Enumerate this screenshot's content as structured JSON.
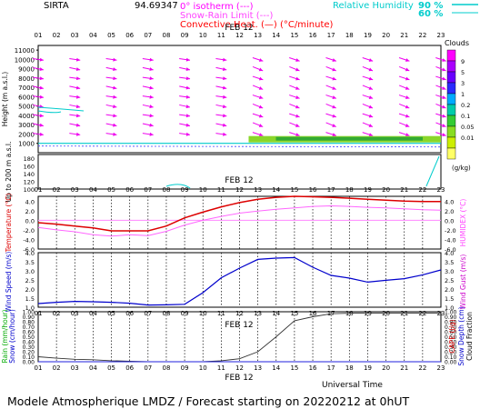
{
  "header": {
    "station": "SIRTA",
    "station_value": "94.69347",
    "legend_left": [
      {
        "label": "0° isotherm",
        "style": "(---)",
        "color": "#ff00ff"
      },
      {
        "label": "Snow-Rain Limit",
        "style": "(---)",
        "color": "#ff44ff"
      },
      {
        "label": "Convective Heat.",
        "style": "(—) (°C/minute)",
        "color": "#ff0000"
      }
    ],
    "legend_right": [
      {
        "label": "Relative Humidity",
        "value": "90 %",
        "color": "#00cccc"
      },
      {
        "label": "",
        "value": "60 %",
        "color": "#00cccc"
      }
    ]
  },
  "hours": [
    "01",
    "02",
    "03",
    "04",
    "05",
    "06",
    "07",
    "08",
    "09",
    "10",
    "11",
    "12",
    "13",
    "14",
    "15",
    "16",
    "17",
    "18",
    "19",
    "20",
    "21",
    "22",
    "23"
  ],
  "date_label": "FEB 12",
  "footer": {
    "universal_time": "Universal Time",
    "title": "Modele Atmospherique LMDZ / Forecast starting on 20220212 at 0hUT"
  },
  "clouds_scale": {
    "title": "Clouds",
    "unit": "(g/kg)",
    "levels": [
      "9",
      "5",
      "3",
      "1",
      "0.2",
      "0.1",
      "0.05",
      "0.01"
    ],
    "colors": [
      "#ff00ff",
      "#aa00ff",
      "#6a00ff",
      "#2a2aff",
      "#00aaff",
      "#00ccaa",
      "#33cc33",
      "#88dd22",
      "#ccee00",
      "#ffff66"
    ]
  },
  "chart_data": [
    {
      "type": "area",
      "name": "upper-air",
      "ylabel": "Height (m a.s.l.)",
      "ylabel2": "Up to 200 m a.s.l.",
      "yticks": [
        11000,
        10000,
        9000,
        8000,
        7000,
        6000,
        5000,
        4000,
        3000,
        2000,
        1000
      ],
      "yticks_low": [
        180,
        160,
        140,
        120,
        100
      ],
      "ylim": [
        0,
        11500
      ],
      "x": [
        1,
        2,
        3,
        4,
        5,
        6,
        7,
        8,
        9,
        10,
        11,
        12,
        13,
        14,
        15,
        16,
        17,
        18,
        19,
        20,
        21,
        22,
        23
      ],
      "wind_levels": [
        10000,
        9000,
        8000,
        7000,
        6000,
        5000,
        4000,
        3000,
        2000
      ],
      "cloud_layer": {
        "from_hour": 12,
        "to_hour": 23,
        "height": 1200
      }
    },
    {
      "type": "line",
      "name": "temperature",
      "ylabel": "Temperature (°C)",
      "ylabel_right": "HUMIDEX (°C)",
      "yticks": [
        "4.0",
        "2.0",
        "0.0",
        "-2.0",
        "-4.0",
        "-6.0"
      ],
      "ylim": [
        -6,
        5
      ],
      "x": [
        1,
        2,
        3,
        4,
        5,
        6,
        7,
        8,
        9,
        10,
        11,
        12,
        13,
        14,
        15,
        16,
        17,
        18,
        19,
        20,
        21,
        22,
        23
      ],
      "series": [
        {
          "name": "Temperature",
          "color": "#dd0000",
          "values": [
            -0.5,
            -0.8,
            -1.2,
            -1.6,
            -2.2,
            -2.2,
            -2.2,
            -1.2,
            0.5,
            1.7,
            2.8,
            3.7,
            4.4,
            4.8,
            5.0,
            4.9,
            4.8,
            4.6,
            4.4,
            4.2,
            4.0,
            3.9,
            3.9
          ]
        },
        {
          "name": "HUMIDEX",
          "color": "#ff66ff",
          "values": [
            -1.5,
            -2.0,
            -2.4,
            -3.0,
            -3.3,
            -3.0,
            -3.2,
            -2.3,
            -1.0,
            0.0,
            0.8,
            1.5,
            1.9,
            2.3,
            2.6,
            2.9,
            3.0,
            2.9,
            2.7,
            2.6,
            2.4,
            2.2,
            2.1
          ]
        }
      ]
    },
    {
      "type": "line",
      "name": "wind",
      "ylabel": "Wind Speed (m/s)",
      "ylabel_right": "Wind Gust (m/s)",
      "yticks": [
        "4.0",
        "3.5",
        "3.0",
        "2.5",
        "2.0",
        "1.5",
        "1.0"
      ],
      "ylim": [
        1.0,
        4.0
      ],
      "x": [
        1,
        2,
        3,
        4,
        5,
        6,
        7,
        8,
        9,
        10,
        11,
        12,
        13,
        14,
        15,
        16,
        17,
        18,
        19,
        20,
        21,
        22,
        23
      ],
      "series": [
        {
          "name": "Wind Speed",
          "color": "#0000cc",
          "values": [
            1.2,
            1.27,
            1.32,
            1.3,
            1.27,
            1.22,
            1.12,
            1.13,
            1.16,
            1.8,
            2.62,
            3.15,
            3.63,
            3.7,
            3.73,
            3.2,
            2.75,
            2.6,
            2.38,
            2.48,
            2.57,
            2.78,
            3.05
          ]
        }
      ]
    },
    {
      "type": "line",
      "name": "precipitation",
      "ylabel": "Rain (mm/hour)",
      "ylabel2": "Snow (cm/hour)",
      "ylabel_right": "CAPE (J/g)",
      "ylabel_right2": "Snow Depth (cm)",
      "ylabel_right3": "Cloud Fraction",
      "yticks": [
        "1.00",
        "0.90",
        "0.80",
        "0.70",
        "0.60",
        "0.50",
        "0.40",
        "0.30",
        "0.20",
        "0.10",
        "0.00"
      ],
      "ylim": [
        0,
        1.0
      ],
      "x": [
        1,
        2,
        3,
        4,
        5,
        6,
        7,
        8,
        9,
        10,
        11,
        12,
        13,
        14,
        15,
        16,
        17,
        18,
        19,
        20,
        21,
        22,
        23
      ],
      "series": [
        {
          "name": "Cloud Fraction",
          "color": "#333333",
          "values": [
            0.1,
            0.07,
            0.05,
            0.04,
            0.02,
            0.01,
            0.0,
            0.0,
            0.0,
            0.0,
            0.02,
            0.06,
            0.2,
            0.5,
            0.82,
            0.9,
            0.96,
            0.97,
            0.97,
            0.97,
            0.97,
            0.97,
            0.97
          ]
        },
        {
          "name": "Rain",
          "color": "#2222dd",
          "values": [
            0,
            0,
            0,
            0,
            0,
            0,
            0,
            0,
            0,
            0,
            0,
            0,
            0,
            0,
            0,
            0,
            0,
            0,
            0,
            0,
            0,
            0,
            0
          ]
        }
      ]
    }
  ]
}
